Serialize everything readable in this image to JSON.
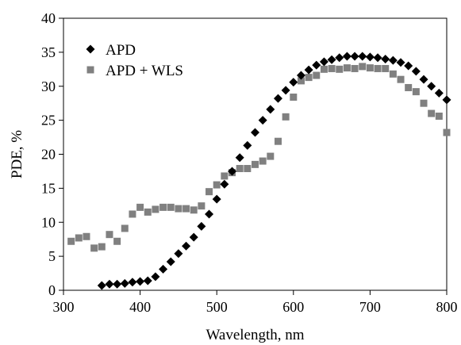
{
  "chart_data": {
    "type": "scatter",
    "xlabel": "Wavelength, nm",
    "ylabel": "PDE, %",
    "xlim": [
      300,
      800
    ],
    "ylim": [
      0,
      40
    ],
    "xticks": [
      300,
      400,
      500,
      600,
      700,
      800
    ],
    "yticks": [
      0,
      5,
      10,
      15,
      20,
      25,
      30,
      35,
      40
    ],
    "grid": false,
    "legend": "top-left",
    "series": [
      {
        "name": "APD",
        "marker": "diamond",
        "color": "#000000",
        "points": [
          [
            350,
            0.7
          ],
          [
            360,
            0.9
          ],
          [
            370,
            0.9
          ],
          [
            380,
            1.0
          ],
          [
            390,
            1.2
          ],
          [
            400,
            1.3
          ],
          [
            410,
            1.4
          ],
          [
            420,
            2.0
          ],
          [
            430,
            3.1
          ],
          [
            440,
            4.2
          ],
          [
            450,
            5.4
          ],
          [
            460,
            6.5
          ],
          [
            470,
            7.8
          ],
          [
            480,
            9.4
          ],
          [
            490,
            11.2
          ],
          [
            500,
            13.4
          ],
          [
            510,
            15.6
          ],
          [
            520,
            17.5
          ],
          [
            530,
            19.5
          ],
          [
            540,
            21.3
          ],
          [
            550,
            23.2
          ],
          [
            560,
            25.0
          ],
          [
            570,
            26.6
          ],
          [
            580,
            28.2
          ],
          [
            590,
            29.4
          ],
          [
            600,
            30.6
          ],
          [
            610,
            31.6
          ],
          [
            620,
            32.4
          ],
          [
            630,
            33.1
          ],
          [
            640,
            33.6
          ],
          [
            650,
            33.9
          ],
          [
            660,
            34.2
          ],
          [
            670,
            34.4
          ],
          [
            680,
            34.4
          ],
          [
            690,
            34.4
          ],
          [
            700,
            34.3
          ],
          [
            710,
            34.2
          ],
          [
            720,
            34.0
          ],
          [
            730,
            33.8
          ],
          [
            740,
            33.5
          ],
          [
            750,
            33.0
          ],
          [
            760,
            32.2
          ],
          [
            770,
            31.0
          ],
          [
            780,
            30.0
          ],
          [
            790,
            29.0
          ],
          [
            800,
            28.0
          ]
        ]
      },
      {
        "name": "APD + WLS",
        "marker": "square",
        "color": "#808080",
        "points": [
          [
            310,
            7.2
          ],
          [
            320,
            7.7
          ],
          [
            330,
            7.9
          ],
          [
            340,
            6.2
          ],
          [
            350,
            6.4
          ],
          [
            360,
            8.2
          ],
          [
            370,
            7.2
          ],
          [
            380,
            9.1
          ],
          [
            390,
            11.2
          ],
          [
            400,
            12.2
          ],
          [
            410,
            11.5
          ],
          [
            420,
            11.9
          ],
          [
            430,
            12.2
          ],
          [
            440,
            12.2
          ],
          [
            450,
            12.0
          ],
          [
            460,
            12.0
          ],
          [
            470,
            11.8
          ],
          [
            480,
            12.4
          ],
          [
            490,
            14.5
          ],
          [
            500,
            15.5
          ],
          [
            510,
            16.8
          ],
          [
            520,
            17.3
          ],
          [
            530,
            17.9
          ],
          [
            540,
            17.9
          ],
          [
            550,
            18.5
          ],
          [
            560,
            19.0
          ],
          [
            570,
            19.7
          ],
          [
            580,
            21.9
          ],
          [
            590,
            25.5
          ],
          [
            600,
            28.4
          ],
          [
            610,
            30.8
          ],
          [
            620,
            31.3
          ],
          [
            630,
            31.6
          ],
          [
            640,
            32.5
          ],
          [
            650,
            32.6
          ],
          [
            660,
            32.5
          ],
          [
            670,
            32.7
          ],
          [
            680,
            32.6
          ],
          [
            690,
            32.9
          ],
          [
            700,
            32.7
          ],
          [
            710,
            32.6
          ],
          [
            720,
            32.6
          ],
          [
            730,
            31.8
          ],
          [
            740,
            31.0
          ],
          [
            750,
            29.8
          ],
          [
            760,
            29.2
          ],
          [
            770,
            27.5
          ],
          [
            780,
            26.0
          ],
          [
            790,
            25.6
          ],
          [
            800,
            23.2
          ]
        ]
      }
    ]
  }
}
